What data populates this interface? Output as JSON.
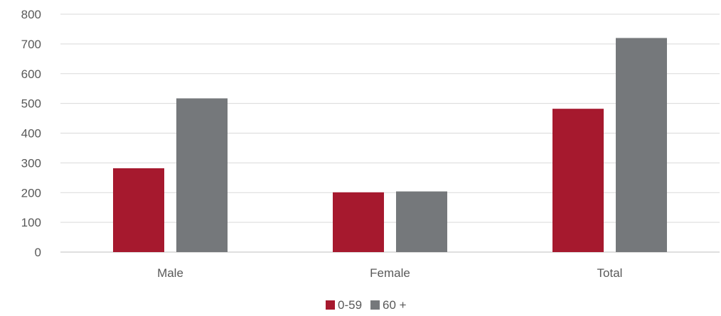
{
  "chart_data": {
    "type": "bar",
    "title": "",
    "xlabel": "",
    "ylabel": "",
    "categories": [
      "Male",
      "Female",
      "Total"
    ],
    "series": [
      {
        "name": "0-59",
        "values": [
          282,
          201,
          482
        ],
        "color": "#a6192e"
      },
      {
        "name": "60 +",
        "values": [
          517,
          204,
          720
        ],
        "color": "#75787b"
      }
    ],
    "ylim": [
      0,
      800
    ],
    "yticks": [
      0,
      100,
      200,
      300,
      400,
      500,
      600,
      700,
      800
    ],
    "grid": true,
    "legend": "bottom-center"
  }
}
